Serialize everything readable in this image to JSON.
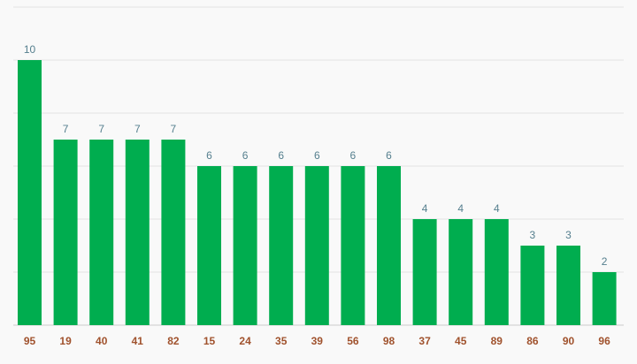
{
  "chart_data": {
    "type": "bar",
    "categories": [
      "95",
      "19",
      "40",
      "41",
      "82",
      "15",
      "24",
      "35",
      "39",
      "56",
      "98",
      "37",
      "45",
      "89",
      "86",
      "90",
      "96"
    ],
    "values": [
      10,
      7,
      7,
      7,
      7,
      6,
      6,
      6,
      6,
      6,
      6,
      4,
      4,
      4,
      3,
      3,
      2
    ],
    "title": "",
    "xlabel": "",
    "ylabel": "",
    "ylim": [
      0,
      12
    ],
    "grid": true,
    "legend": "none",
    "colors": {
      "bar": "#00ad4f",
      "value_label": "#557f8e",
      "category_label": "#a0522d",
      "grid": "#e2e2e2",
      "baseline": "#cccccc",
      "background": "#f9f9f9"
    }
  }
}
